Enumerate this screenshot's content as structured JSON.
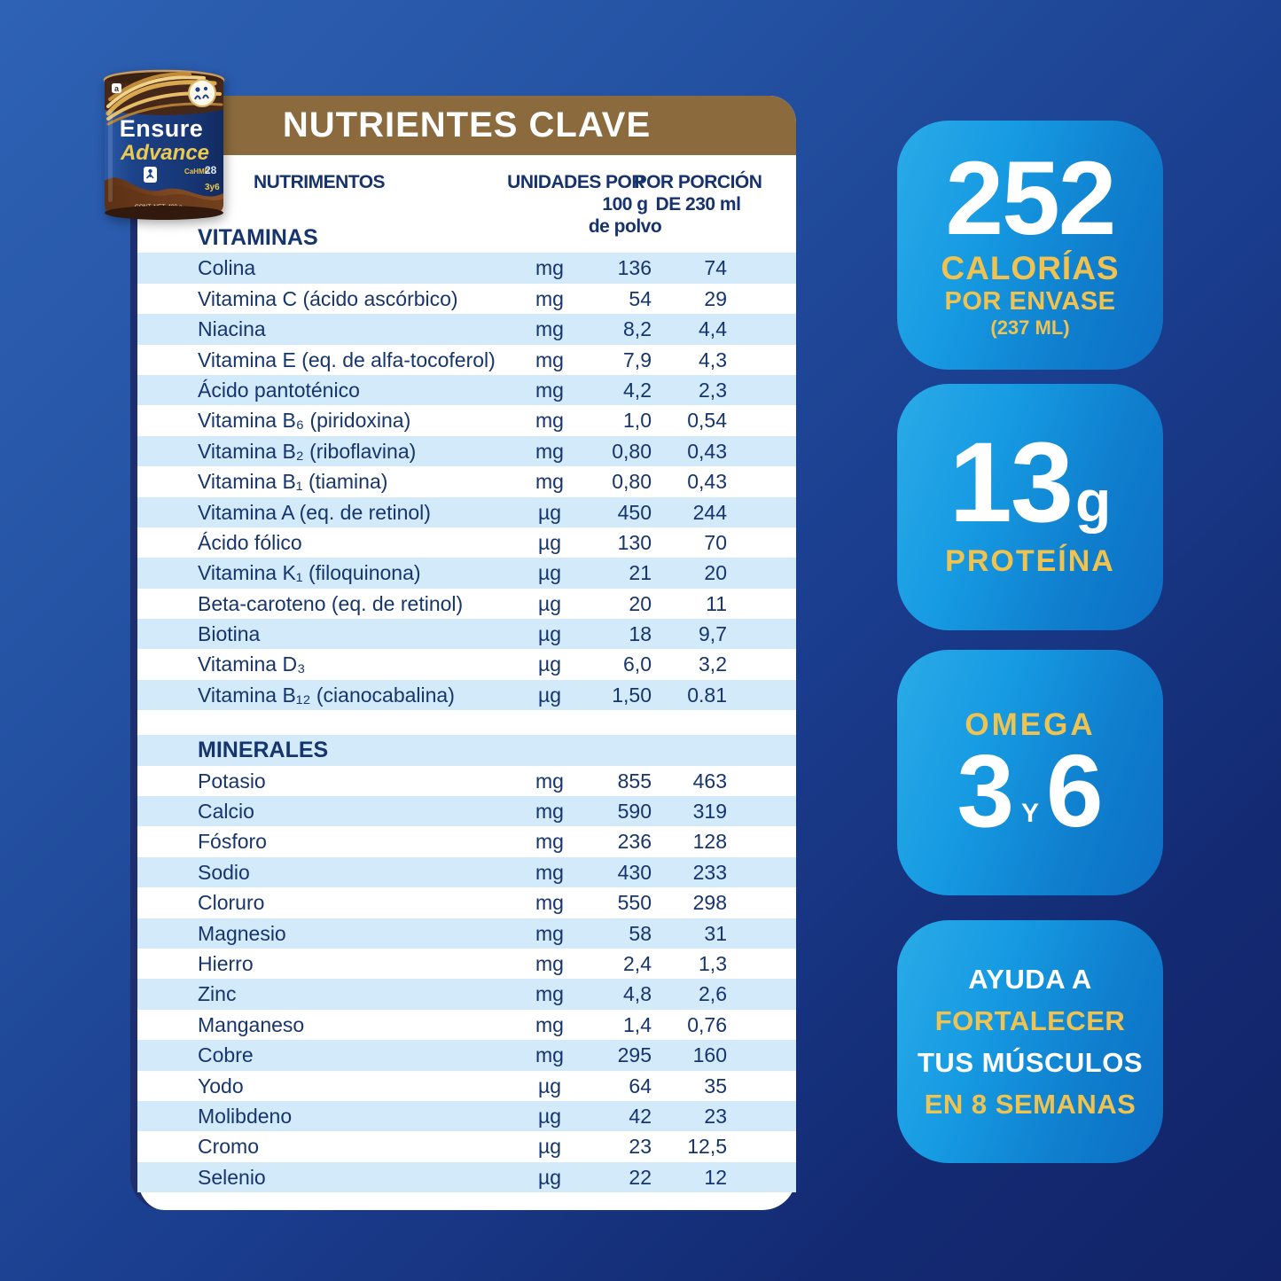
{
  "colors": {
    "background_top": "#2e62b4",
    "background_bottom": "#122368",
    "banner_brown": "#8b6b3e",
    "stripe_blue": "#d2eafa",
    "text_navy": "#17356d",
    "badge_blue_light": "#2aabe8",
    "badge_blue_dark": "#0d6ec3",
    "accent_yellow": "#f0c351"
  },
  "product_can": {
    "brand": "Ensure",
    "line": "Advance",
    "hmb_label": "CaHMB",
    "vitamins_count": "28",
    "omega_label": "3y6",
    "net_weight": "CONT. NET. 400 g"
  },
  "table": {
    "title": "NUTRIENTES CLAVE",
    "columns": {
      "nutrients": "NUTRIMENTOS",
      "units": "UNIDADES",
      "per100_l1": "POR",
      "per100_l2": "100 g",
      "per100_l3": "de polvo",
      "portion_l1": "POR PORCIÓN",
      "portion_l2": "DE 230 ml"
    },
    "rows": [
      {
        "type": "section",
        "name": "VITAMINAS",
        "striped": false
      },
      {
        "name": "Colina",
        "unit": "mg",
        "per100": "136",
        "portion": "74",
        "striped": true
      },
      {
        "name": "Vitamina C (ácido ascórbico)",
        "unit": "mg",
        "per100": "54",
        "portion": "29",
        "striped": false
      },
      {
        "name": "Niacina",
        "unit": "mg",
        "per100": "8,2",
        "portion": "4,4",
        "striped": true
      },
      {
        "name": "Vitamina E (eq. de alfa-tocoferol)",
        "unit": "mg",
        "per100": "7,9",
        "portion": "4,3",
        "striped": false
      },
      {
        "name": "Ácido pantoténico",
        "unit": "mg",
        "per100": "4,2",
        "portion": "2,3",
        "striped": true
      },
      {
        "name": "Vitamina B₆ (piridoxina)",
        "unit": "mg",
        "per100": "1,0",
        "portion": "0,54",
        "striped": false
      },
      {
        "name": "Vitamina B₂ (riboflavina)",
        "unit": "mg",
        "per100": "0,80",
        "portion": "0,43",
        "striped": true
      },
      {
        "name": "Vitamina B₁ (tiamina)",
        "unit": "mg",
        "per100": "0,80",
        "portion": "0,43",
        "striped": false
      },
      {
        "name": "Vitamina A (eq. de retinol)",
        "unit": "µg",
        "per100": "450",
        "portion": "244",
        "striped": true
      },
      {
        "name": "Ácido fólico",
        "unit": "µg",
        "per100": "130",
        "portion": "70",
        "striped": false
      },
      {
        "name": "Vitamina K₁ (filoquinona)",
        "unit": "µg",
        "per100": "21",
        "portion": "20",
        "striped": true
      },
      {
        "name": "Beta-caroteno (eq. de retinol)",
        "unit": "µg",
        "per100": "20",
        "portion": "11",
        "striped": false
      },
      {
        "name": "Biotina",
        "unit": "µg",
        "per100": "18",
        "portion": "9,7",
        "striped": true
      },
      {
        "name": "Vitamina D₃",
        "unit": "µg",
        "per100": "6,0",
        "portion": "3,2",
        "striped": false
      },
      {
        "name": "Vitamina B₁₂ (cianocabalina)",
        "unit": "µg",
        "per100": "1,50",
        "portion": "0.81",
        "striped": true
      },
      {
        "type": "spacer",
        "striped": false
      },
      {
        "type": "section",
        "name": "MINERALES",
        "striped": true
      },
      {
        "name": "Potasio",
        "unit": "mg",
        "per100": "855",
        "portion": "463",
        "striped": false
      },
      {
        "name": "Calcio",
        "unit": "mg",
        "per100": "590",
        "portion": "319",
        "striped": true
      },
      {
        "name": "Fósforo",
        "unit": "mg",
        "per100": "236",
        "portion": "128",
        "striped": false
      },
      {
        "name": "Sodio",
        "unit": "mg",
        "per100": "430",
        "portion": "233",
        "striped": true
      },
      {
        "name": "Cloruro",
        "unit": "mg",
        "per100": "550",
        "portion": "298",
        "striped": false
      },
      {
        "name": "Magnesio",
        "unit": "mg",
        "per100": "58",
        "portion": "31",
        "striped": true
      },
      {
        "name": "Hierro",
        "unit": "mg",
        "per100": "2,4",
        "portion": "1,3",
        "striped": false
      },
      {
        "name": "Zinc",
        "unit": "mg",
        "per100": "4,8",
        "portion": "2,6",
        "striped": true
      },
      {
        "name": "Manganeso",
        "unit": "mg",
        "per100": "1,4",
        "portion": "0,76",
        "striped": false
      },
      {
        "name": "Cobre",
        "unit": "mg",
        "per100": "295",
        "portion": "160",
        "striped": true
      },
      {
        "name": "Yodo",
        "unit": "µg",
        "per100": "64",
        "portion": "35",
        "striped": false
      },
      {
        "name": "Molibdeno",
        "unit": "µg",
        "per100": "42",
        "portion": "23",
        "striped": true
      },
      {
        "name": "Cromo",
        "unit": "µg",
        "per100": "23",
        "portion": "12,5",
        "striped": false
      },
      {
        "name": "Selenio",
        "unit": "µg",
        "per100": "22",
        "portion": "12",
        "striped": true
      }
    ]
  },
  "badges": {
    "calories": {
      "value": "252",
      "l1": "CALORÍAS",
      "l2": "POR ENVASE",
      "l3": "(237 ML)"
    },
    "protein": {
      "value": "13",
      "unit": "g",
      "label": "PROTEÍNA"
    },
    "omega": {
      "label": "OMEGA",
      "n1": "3",
      "conj": "Y",
      "n2": "6"
    },
    "muscles": {
      "l1": "AYUDA A",
      "l2": "FORTALECER",
      "l3": "TUS MÚSCULOS",
      "l4": "EN 8 SEMANAS"
    }
  }
}
